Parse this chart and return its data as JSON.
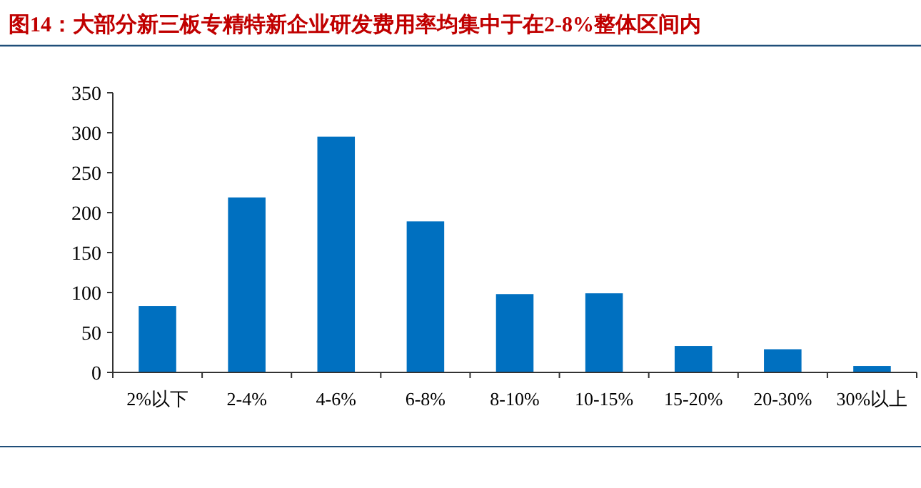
{
  "chart_data": {
    "type": "bar",
    "title": "图14：大部分新三板专精特新企业研发费用率均集中于在2-8%整体区间内",
    "categories": [
      "2%以下",
      "2-4%",
      "4-6%",
      "6-8%",
      "8-10%",
      "10-15%",
      "15-20%",
      "20-30%",
      "30%以上"
    ],
    "values": [
      83,
      219,
      295,
      189,
      98,
      99,
      33,
      29,
      8
    ],
    "color": "#0070c0",
    "ylim": [
      0,
      350
    ],
    "yticks": [
      0,
      50,
      100,
      150,
      200,
      250,
      300,
      350
    ],
    "grid": false
  }
}
